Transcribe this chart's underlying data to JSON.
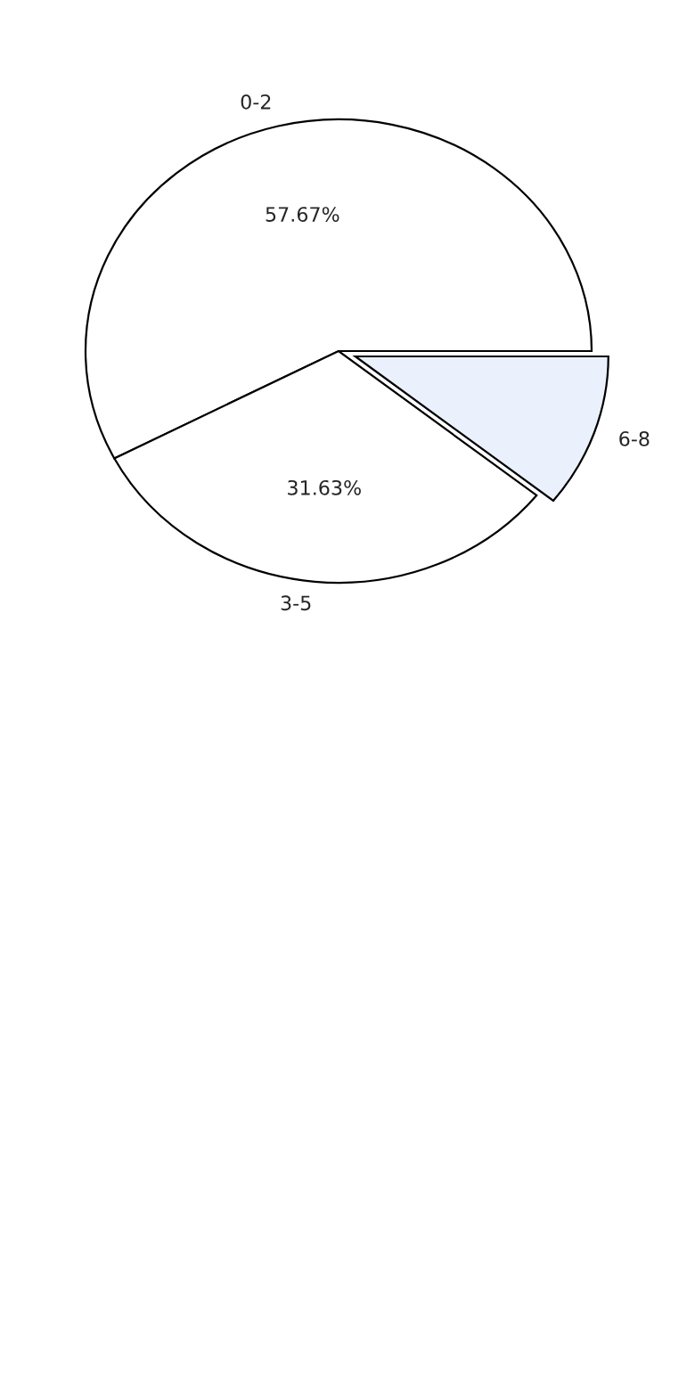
{
  "chart_data": {
    "type": "pie",
    "categories": [
      "0-2",
      "3-5",
      "6-8"
    ],
    "values": [
      57.67,
      31.63,
      10.7
    ],
    "colors": [
      "#ffffff",
      "#ffffff",
      "#eaf1fd"
    ],
    "value_labels": [
      "57.67%",
      "31.63%",
      null
    ]
  }
}
